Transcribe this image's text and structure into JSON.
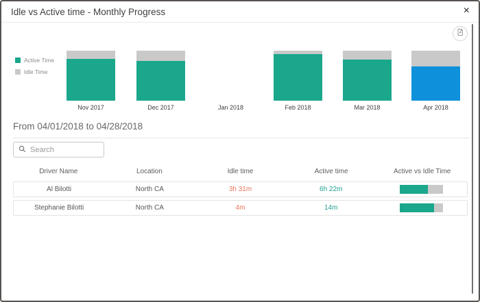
{
  "dialog": {
    "title": "Idle vs Active time - Monthly Progress",
    "close_label": "×"
  },
  "chart_data": {
    "type": "bar",
    "stacked": true,
    "percent_stacked": true,
    "categories": [
      "Nov 2017",
      "Dec 2017",
      "Jan 2018",
      "Feb 2018",
      "Mar 2018",
      "Apr 2018"
    ],
    "series": [
      {
        "name": "Active Time",
        "color": "#1AA78C",
        "values": [
          84,
          80,
          null,
          93,
          82,
          68
        ]
      },
      {
        "name": "Idle Time",
        "color": "#C9C9C9",
        "values": [
          16,
          20,
          null,
          7,
          18,
          32
        ]
      }
    ],
    "highlight": {
      "category": "Apr 2018",
      "series": "Active Time",
      "color": "#0E90DB"
    },
    "legend_position": "left",
    "note_units": "values are percent of month total; Jan 2018 has no data"
  },
  "range_heading": "From 04/01/2018 to 04/28/2018",
  "search": {
    "placeholder": "Search"
  },
  "table": {
    "columns": [
      "Driver Name",
      "Location",
      "Idle time",
      "Active time",
      "Active vs Idle Time"
    ],
    "rows": [
      {
        "driver": "Al Bilotti",
        "location": "North CA",
        "idle": "3h 31m",
        "active": "6h 22m",
        "active_pct": 64
      },
      {
        "driver": "Stephanie Bilotti",
        "location": "North CA",
        "idle": "4m",
        "active": "14m",
        "active_pct": 78
      }
    ]
  },
  "colors": {
    "active_teal": "#1AA78C",
    "selected_blue": "#0E90DB",
    "idle_gray": "#C9C9C9",
    "idle_text_orange": "#E8735A",
    "active_text_teal": "#1FA08F"
  }
}
